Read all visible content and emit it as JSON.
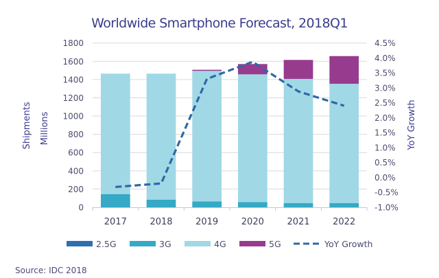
{
  "chart_data": {
    "type": "bar",
    "stacked": true,
    "title": "Worldwide Smartphone Forecast, 2018Q1",
    "categories": [
      "2017",
      "2018",
      "2019",
      "2020",
      "2021",
      "2022"
    ],
    "ylabel": [
      "Shipments",
      "Millions"
    ],
    "ylim": [
      0,
      1800
    ],
    "yticks": [
      0,
      200,
      400,
      600,
      800,
      1000,
      1200,
      1400,
      1600,
      1800
    ],
    "y2label": "YoY Growth",
    "y2lim": [
      -1.0,
      4.5
    ],
    "y2ticks": [
      "-1.0%",
      "-0.5%",
      "0.0%",
      "0.5%",
      "1.0%",
      "1.5%",
      "2.0%",
      "2.5%",
      "3.0%",
      "3.5%",
      "4.0%",
      "4.5%"
    ],
    "y2tick_values": [
      -1.0,
      -0.5,
      0.0,
      0.5,
      1.0,
      1.5,
      2.0,
      2.5,
      3.0,
      3.5,
      4.0,
      4.5
    ],
    "grid": true,
    "legend_position": "bottom",
    "series": [
      {
        "name": "2.5G",
        "color": "#2e6fb0",
        "values": [
          0,
          0,
          0,
          0,
          0,
          0
        ]
      },
      {
        "name": "3G",
        "color": "#35a9c6",
        "values": [
          145,
          83,
          65,
          58,
          47,
          47
        ]
      },
      {
        "name": "4G",
        "color": "#a0d8e6",
        "values": [
          1320,
          1382,
          1430,
          1399,
          1360,
          1307
        ]
      },
      {
        "name": "5G",
        "color": "#973b8e",
        "values": [
          0,
          0,
          12,
          113,
          208,
          303
        ]
      }
    ],
    "line_series": {
      "name": "YoY Growth",
      "axis": "right",
      "style": "dashed",
      "color": "#2f68a4",
      "values": [
        -0.32,
        -0.2,
        3.3,
        3.87,
        2.88,
        2.4
      ],
      "unit": "%"
    },
    "source": "Source: IDC 2018"
  }
}
